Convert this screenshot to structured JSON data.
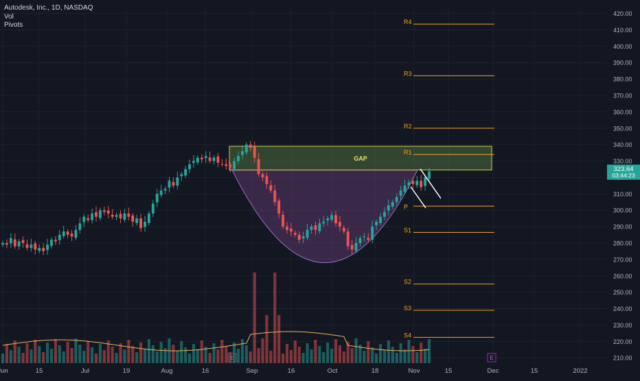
{
  "legend": {
    "title": "Autodesk, Inc., 1D, NASDAQ",
    "vol": "Vol",
    "pivots": "Pivots"
  },
  "colors": {
    "up": "#26a69a",
    "down": "#ef5350",
    "pivot": "#f7a21b",
    "grid": "#1e222d",
    "bg": "#131722",
    "gap_fill": "#4c6b3c",
    "gap_stroke": "#c8d14b",
    "cup_fill": "#6a3f7a",
    "cup_stroke": "#9c6cc5",
    "price_label": "#26a69a",
    "vol_ma": "#f0b25a",
    "earnings": "#9c27b0"
  },
  "chart_data": {
    "type": "candlestick",
    "title": "Autodesk, Inc., 1D, NASDAQ",
    "y_ticks": [
      "420.00",
      "410.00",
      "400.00",
      "390.00",
      "380.00",
      "370.00",
      "360.00",
      "350.00",
      "340.00",
      "330.00",
      "320.00",
      "310.00",
      "300.00",
      "290.00",
      "280.00",
      "270.00",
      "260.00",
      "250.00",
      "240.00",
      "230.00",
      "220.00",
      "210.00"
    ],
    "x_ticks": [
      "Jun",
      "15",
      "Jul",
      "19",
      "Aug",
      "16",
      "Sep",
      "16",
      "Oct",
      "18",
      "Nov",
      "15",
      "Dec",
      "15",
      "2022"
    ],
    "ylim": [
      208,
      424
    ],
    "last_price": "323.64",
    "countdown": "03:44:23",
    "pivots": [
      {
        "label": "R4",
        "value": 413.5
      },
      {
        "label": "R3",
        "value": 382.0
      },
      {
        "label": "R2",
        "value": 350.0
      },
      {
        "label": "R1",
        "value": 334.0
      },
      {
        "label": "P",
        "value": 302.5
      },
      {
        "label": "S1",
        "value": 286.5
      },
      {
        "label": "S2",
        "value": 255.0
      },
      {
        "label": "S3",
        "value": 239.0
      },
      {
        "label": "S4",
        "value": 222.5
      }
    ],
    "gap": {
      "label": "GAP",
      "top": 339.0,
      "bottom": 324.5
    },
    "cup_bottom": 268.0,
    "earnings_markers": [
      "E",
      "E"
    ],
    "price_series": [
      280,
      279,
      283,
      278,
      281,
      280,
      277,
      279,
      276,
      277,
      275,
      279,
      282,
      281,
      285,
      287,
      285,
      284,
      288,
      292,
      296,
      294,
      298,
      296,
      300,
      299,
      298,
      296,
      297,
      295,
      298,
      296,
      293,
      295,
      289,
      293,
      298,
      304,
      310,
      312,
      313,
      318,
      315,
      320,
      322,
      325,
      328,
      330,
      332,
      331,
      333,
      330,
      332,
      329,
      328,
      327,
      326,
      330,
      333,
      336,
      340,
      338,
      332,
      322,
      320,
      316,
      312,
      305,
      298,
      290,
      288,
      287,
      285,
      282,
      284,
      288,
      290,
      288,
      292,
      293,
      295,
      297,
      292,
      290,
      287,
      278,
      276,
      280,
      283,
      284,
      282,
      290,
      293,
      296,
      299,
      303,
      305,
      308,
      312,
      315,
      317,
      316,
      318,
      314,
      320,
      323.64
    ]
  }
}
